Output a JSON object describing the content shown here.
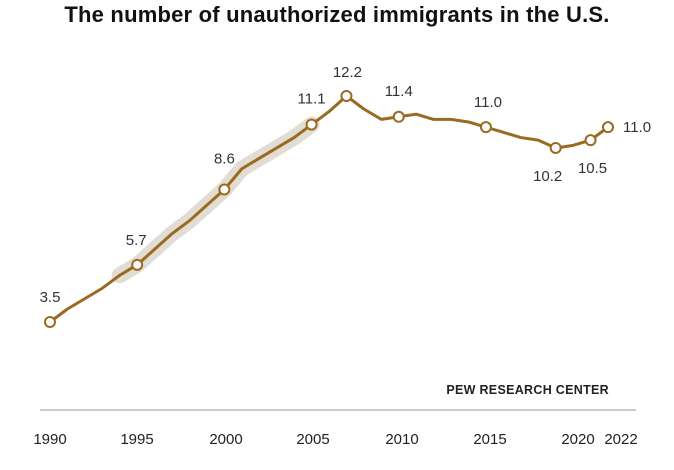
{
  "chart_data": {
    "type": "line",
    "title": "The number of unauthorized immigrants in the U.S.",
    "source": "PEW RESEARCH CENTER",
    "xlabel": "",
    "ylabel": "",
    "x_ticks": [
      "1990",
      "1995",
      "2000",
      "2005",
      "2010",
      "2015",
      "2020",
      "2022"
    ],
    "grid": false,
    "series": [
      {
        "x": [
          1990,
          1991,
          1992,
          1993,
          1994,
          1995,
          1996,
          1997,
          1998,
          1999,
          2000,
          2001,
          2002,
          2003,
          2004,
          2005,
          2006,
          2007,
          2008,
          2009,
          2010,
          2011,
          2012,
          2013,
          2014,
          2015,
          2016,
          2017,
          2018,
          2019,
          2020,
          2021,
          2022
        ],
        "values": [
          3.5,
          4.0,
          4.4,
          4.8,
          5.3,
          5.7,
          6.3,
          6.9,
          7.4,
          8.0,
          8.6,
          9.4,
          9.8,
          10.2,
          10.6,
          11.1,
          11.6,
          12.2,
          11.7,
          11.3,
          11.4,
          11.5,
          11.3,
          11.3,
          11.2,
          11.0,
          10.8,
          10.6,
          10.5,
          10.2,
          10.3,
          10.5,
          11.0
        ],
        "labeled_points": [
          {
            "x": 1990,
            "label": "3.5"
          },
          {
            "x": 1995,
            "label": "5.7"
          },
          {
            "x": 2000,
            "label": "8.6"
          },
          {
            "x": 2005,
            "label": "11.1"
          },
          {
            "x": 2007,
            "label": "12.2"
          },
          {
            "x": 2010,
            "label": "11.4"
          },
          {
            "x": 2015,
            "label": "11.0"
          },
          {
            "x": 2019,
            "label": "10.2"
          },
          {
            "x": 2021,
            "label": "10.5"
          },
          {
            "x": 2022,
            "label": "11.0"
          }
        ],
        "color": "#9b6a22",
        "band_color": "#e2ddd2"
      }
    ],
    "ylim": [
      0,
      12.5
    ],
    "xlim": [
      1990,
      2022
    ]
  }
}
